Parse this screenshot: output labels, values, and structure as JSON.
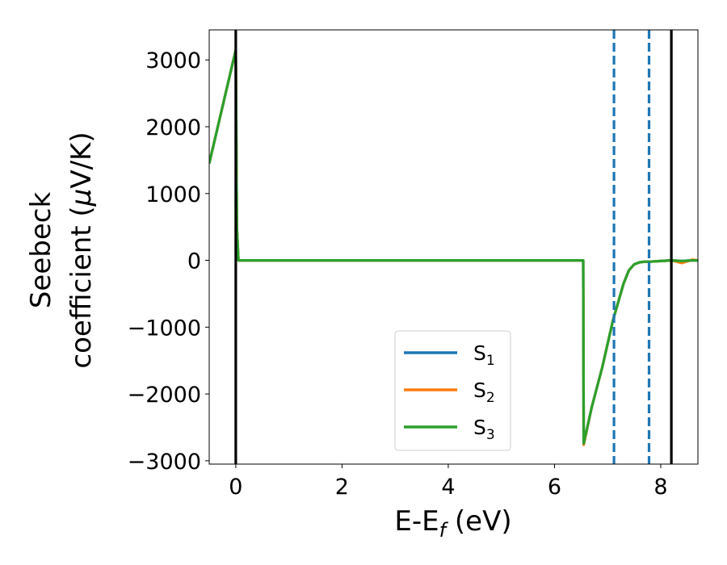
{
  "chart_data": {
    "type": "line",
    "xlabel": "E-E",
    "xlabel_sub": "f",
    "xlabel_unit": " (eV)",
    "ylabel_line1": "Seebeck",
    "ylabel_line2": "coefficient  (",
    "ylabel_mu": "μ",
    "ylabel_unit": "V/K)",
    "xlim": [
      -0.5,
      8.7
    ],
    "ylim": [
      -3050,
      3450
    ],
    "xticks": [
      0,
      2,
      4,
      6,
      8
    ],
    "xtick_labels": [
      "0",
      "2",
      "4",
      "6",
      "8"
    ],
    "yticks": [
      3000,
      2000,
      1000,
      0,
      -1000,
      -2000,
      -3000
    ],
    "ytick_labels": [
      "3000",
      "2000",
      "1000",
      "0",
      "−1000",
      "−2000",
      "−3000"
    ],
    "vlines_solid": [
      0,
      8.2
    ],
    "vlines_dashed": [
      7.12,
      7.78
    ],
    "legend_position": "lower center",
    "series": [
      {
        "name": "S",
        "sub": "1",
        "color": "#1f77b4",
        "x": [
          -0.5,
          0,
          0.02,
          0.05,
          1,
          2,
          3,
          4,
          5,
          6,
          6.54,
          6.55,
          6.7,
          6.9,
          7.1,
          7.3,
          7.4,
          7.5,
          7.6,
          7.7,
          7.8,
          8.0,
          8.2,
          8.4,
          8.6,
          8.7
        ],
        "y": [
          1450,
          3150,
          500,
          0,
          0,
          0,
          0,
          0,
          0,
          0,
          0,
          -2760,
          -2200,
          -1600,
          -900,
          -350,
          -150,
          -60,
          -30,
          -20,
          -20,
          -10,
          0,
          -10,
          0,
          0
        ]
      },
      {
        "name": "S",
        "sub": "2",
        "color": "#ff7f0e",
        "x": [
          -0.5,
          0,
          0.02,
          0.05,
          1,
          2,
          3,
          4,
          5,
          6,
          6.54,
          6.55,
          6.7,
          6.9,
          7.1,
          7.3,
          7.4,
          7.5,
          7.6,
          7.7,
          7.8,
          8.0,
          8.2,
          8.4,
          8.6,
          8.7
        ],
        "y": [
          1450,
          3150,
          500,
          0,
          0,
          0,
          0,
          0,
          0,
          0,
          0,
          -2760,
          -2200,
          -1600,
          -900,
          -350,
          -150,
          -60,
          -30,
          -20,
          -20,
          -10,
          0,
          -40,
          10,
          0
        ]
      },
      {
        "name": "S",
        "sub": "3",
        "color": "#2ca02c",
        "x": [
          -0.5,
          0,
          0.02,
          0.05,
          1,
          2,
          3,
          4,
          5,
          6,
          6.54,
          6.55,
          6.7,
          6.9,
          7.1,
          7.3,
          7.4,
          7.5,
          7.6,
          7.7,
          7.8,
          8.0,
          8.2,
          8.4,
          8.6,
          8.7
        ],
        "y": [
          1450,
          3150,
          500,
          0,
          0,
          0,
          0,
          0,
          0,
          0,
          0,
          -2740,
          -2200,
          -1600,
          -900,
          -350,
          -150,
          -60,
          -30,
          -20,
          -20,
          -10,
          0,
          -10,
          0,
          0
        ]
      }
    ]
  }
}
